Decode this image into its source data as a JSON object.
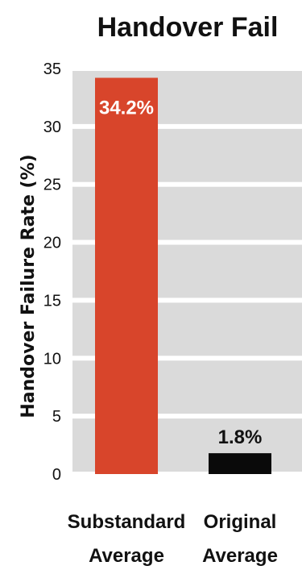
{
  "chart_data": {
    "type": "bar",
    "title": "Handover Fail",
    "ylabel": "Handover Failure Rate (%)",
    "xlabel": "",
    "categories": [
      [
        "Substandard",
        "Average"
      ],
      [
        "Original",
        "Average"
      ]
    ],
    "values": [
      34.2,
      1.8
    ],
    "data_labels": [
      "34.2%",
      "1.8%"
    ],
    "ylim": [
      0,
      35
    ],
    "yticks": [
      0,
      5,
      10,
      15,
      20,
      25,
      30,
      35
    ],
    "grid": "horizontal bands",
    "colors": {
      "bars": [
        "#d8452b",
        "#0a0a0a"
      ],
      "band": "#dadada",
      "band_gap": "#ffffff"
    }
  }
}
